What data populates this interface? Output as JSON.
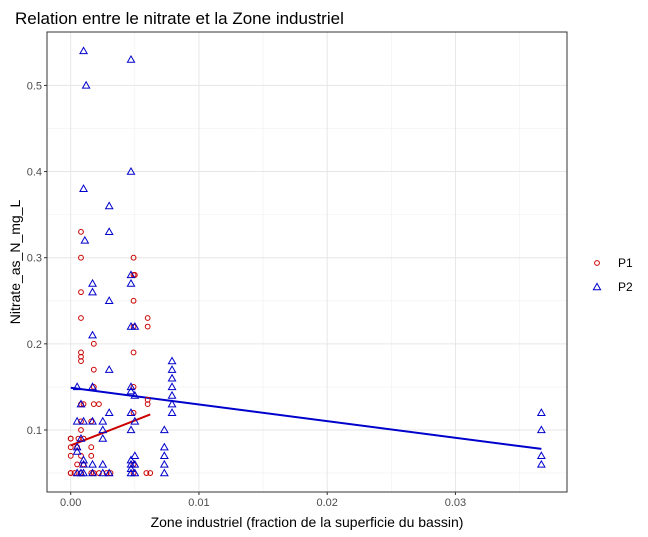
{
  "chart_data": {
    "type": "scatter",
    "title": "Relation entre le nitrate et la Zone industriel",
    "xlabel": "Zone industriel (fraction de la superficie du bassin)",
    "ylabel": "Nitrate_as_N_mg_L",
    "xlim": [
      -0.00185,
      0.0387
    ],
    "ylim": [
      0.028,
      0.562
    ],
    "x_ticks": [
      0.0,
      0.01,
      0.02,
      0.03
    ],
    "x_tick_labels": [
      "0.00",
      "0.01",
      "0.02",
      "0.03"
    ],
    "y_ticks": [
      0.1,
      0.2,
      0.3,
      0.4,
      0.5
    ],
    "y_tick_labels": [
      "0.1",
      "0.2",
      "0.3",
      "0.4",
      "0.5"
    ],
    "grid": true,
    "legend_position": "right",
    "series": [
      {
        "name": "P1",
        "marker": "circle",
        "color": "#cc0000",
        "points": [
          [
            0.0,
            0.05
          ],
          [
            0.0,
            0.07
          ],
          [
            0.0,
            0.08
          ],
          [
            0.0,
            0.09
          ],
          [
            0.0,
            0.09
          ],
          [
            0.0,
            0.05
          ],
          [
            0.0003,
            0.05
          ],
          [
            0.0005,
            0.06
          ],
          [
            0.0005,
            0.08
          ],
          [
            0.0006,
            0.09
          ],
          [
            0.0008,
            0.33
          ],
          [
            0.0008,
            0.3
          ],
          [
            0.0008,
            0.26
          ],
          [
            0.0008,
            0.23
          ],
          [
            0.0008,
            0.19
          ],
          [
            0.0008,
            0.185
          ],
          [
            0.0008,
            0.18
          ],
          [
            0.0008,
            0.13
          ],
          [
            0.0008,
            0.11
          ],
          [
            0.0008,
            0.1
          ],
          [
            0.0008,
            0.07
          ],
          [
            0.0008,
            0.05
          ],
          [
            0.0008,
            0.05
          ],
          [
            0.001,
            0.13
          ],
          [
            0.001,
            0.09
          ],
          [
            0.001,
            0.06
          ],
          [
            0.0016,
            0.11
          ],
          [
            0.0016,
            0.08
          ],
          [
            0.0016,
            0.07
          ],
          [
            0.0016,
            0.05
          ],
          [
            0.0018,
            0.2
          ],
          [
            0.0018,
            0.17
          ],
          [
            0.0018,
            0.15
          ],
          [
            0.0018,
            0.13
          ],
          [
            0.0018,
            0.05
          ],
          [
            0.0022,
            0.13
          ],
          [
            0.0022,
            0.05
          ],
          [
            0.0028,
            0.05
          ],
          [
            0.0031,
            0.05
          ],
          [
            0.0049,
            0.3
          ],
          [
            0.0049,
            0.28
          ],
          [
            0.0049,
            0.25
          ],
          [
            0.0049,
            0.22
          ],
          [
            0.0049,
            0.19
          ],
          [
            0.0049,
            0.15
          ],
          [
            0.0049,
            0.12
          ],
          [
            0.0049,
            0.06
          ],
          [
            0.0049,
            0.05
          ],
          [
            0.005,
            0.28
          ],
          [
            0.0059,
            0.05
          ],
          [
            0.006,
            0.23
          ],
          [
            0.006,
            0.22
          ],
          [
            0.006,
            0.135
          ],
          [
            0.006,
            0.13
          ],
          [
            0.0062,
            0.05
          ]
        ],
        "trend": [
          [
            0.0,
            0.082
          ],
          [
            0.0062,
            0.118
          ]
        ]
      },
      {
        "name": "P2",
        "marker": "triangle",
        "color": "#0000cc",
        "points": [
          [
            0.0005,
            0.15
          ],
          [
            0.0005,
            0.11
          ],
          [
            0.0005,
            0.08
          ],
          [
            0.0005,
            0.075
          ],
          [
            0.0005,
            0.05
          ],
          [
            0.0008,
            0.13
          ],
          [
            0.0008,
            0.09
          ],
          [
            0.0008,
            0.05
          ],
          [
            0.001,
            0.54
          ],
          [
            0.0012,
            0.5
          ],
          [
            0.001,
            0.38
          ],
          [
            0.0011,
            0.32
          ],
          [
            0.001,
            0.11
          ],
          [
            0.001,
            0.065
          ],
          [
            0.001,
            0.06
          ],
          [
            0.001,
            0.05
          ],
          [
            0.0017,
            0.27
          ],
          [
            0.0017,
            0.26
          ],
          [
            0.0017,
            0.21
          ],
          [
            0.0017,
            0.15
          ],
          [
            0.0017,
            0.11
          ],
          [
            0.0017,
            0.06
          ],
          [
            0.0017,
            0.05
          ],
          [
            0.0025,
            0.11
          ],
          [
            0.0025,
            0.1
          ],
          [
            0.0025,
            0.09
          ],
          [
            0.0025,
            0.06
          ],
          [
            0.0025,
            0.05
          ],
          [
            0.003,
            0.36
          ],
          [
            0.003,
            0.33
          ],
          [
            0.003,
            0.25
          ],
          [
            0.003,
            0.17
          ],
          [
            0.003,
            0.12
          ],
          [
            0.003,
            0.05
          ],
          [
            0.0047,
            0.53
          ],
          [
            0.0047,
            0.4
          ],
          [
            0.0047,
            0.28
          ],
          [
            0.0047,
            0.27
          ],
          [
            0.0047,
            0.22
          ],
          [
            0.0047,
            0.15
          ],
          [
            0.0047,
            0.145
          ],
          [
            0.0047,
            0.12
          ],
          [
            0.0047,
            0.1
          ],
          [
            0.0047,
            0.065
          ],
          [
            0.0047,
            0.06
          ],
          [
            0.0047,
            0.055
          ],
          [
            0.0047,
            0.05
          ],
          [
            0.005,
            0.22
          ],
          [
            0.005,
            0.14
          ],
          [
            0.005,
            0.11
          ],
          [
            0.005,
            0.07
          ],
          [
            0.005,
            0.06
          ],
          [
            0.005,
            0.05
          ],
          [
            0.0073,
            0.1
          ],
          [
            0.0073,
            0.08
          ],
          [
            0.0073,
            0.07
          ],
          [
            0.0073,
            0.06
          ],
          [
            0.0073,
            0.05
          ],
          [
            0.0079,
            0.18
          ],
          [
            0.0079,
            0.17
          ],
          [
            0.0079,
            0.16
          ],
          [
            0.0079,
            0.15
          ],
          [
            0.0079,
            0.14
          ],
          [
            0.0079,
            0.13
          ],
          [
            0.0079,
            0.12
          ],
          [
            0.0367,
            0.12
          ],
          [
            0.0367,
            0.1
          ],
          [
            0.0367,
            0.07
          ],
          [
            0.0367,
            0.06
          ]
        ],
        "trend": [
          [
            0.0,
            0.149
          ],
          [
            0.0367,
            0.078
          ]
        ]
      }
    ]
  }
}
